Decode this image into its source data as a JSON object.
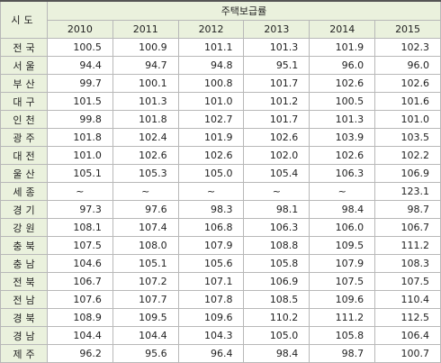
{
  "table": {
    "region_header": "시도",
    "group_header": "주택보급률",
    "years": [
      "2010",
      "2011",
      "2012",
      "2013",
      "2014",
      "2015"
    ],
    "rows": [
      {
        "region": "전국",
        "values": [
          "100.5",
          "100.9",
          "101.1",
          "101.3",
          "101.9",
          "102.3"
        ]
      },
      {
        "region": "서울",
        "values": [
          "94.4",
          "94.7",
          "94.8",
          "95.1",
          "96.0",
          "96.0"
        ]
      },
      {
        "region": "부산",
        "values": [
          "99.7",
          "100.1",
          "100.8",
          "101.7",
          "102.6",
          "102.6"
        ]
      },
      {
        "region": "대구",
        "values": [
          "101.5",
          "101.3",
          "101.0",
          "101.2",
          "100.5",
          "101.6"
        ]
      },
      {
        "region": "인천",
        "values": [
          "99.8",
          "101.8",
          "102.7",
          "101.7",
          "101.3",
          "101.0"
        ]
      },
      {
        "region": "광주",
        "values": [
          "101.8",
          "102.4",
          "101.9",
          "102.6",
          "103.9",
          "103.5"
        ]
      },
      {
        "region": "대전",
        "values": [
          "101.0",
          "102.6",
          "102.6",
          "102.0",
          "102.6",
          "102.2"
        ]
      },
      {
        "region": "울산",
        "values": [
          "105.1",
          "105.3",
          "105.0",
          "105.4",
          "106.3",
          "106.9"
        ]
      },
      {
        "region": "세종",
        "values": [
          "~",
          "~",
          "~",
          "~",
          "~",
          "123.1"
        ]
      },
      {
        "region": "경기",
        "values": [
          "97.3",
          "97.6",
          "98.3",
          "98.1",
          "98.4",
          "98.7"
        ]
      },
      {
        "region": "강원",
        "values": [
          "108.1",
          "107.4",
          "106.8",
          "106.3",
          "106.0",
          "106.7"
        ]
      },
      {
        "region": "충북",
        "values": [
          "107.5",
          "108.0",
          "107.9",
          "108.8",
          "109.5",
          "111.2"
        ]
      },
      {
        "region": "충남",
        "values": [
          "104.6",
          "105.1",
          "105.6",
          "105.8",
          "107.9",
          "108.3"
        ]
      },
      {
        "region": "전북",
        "values": [
          "106.7",
          "107.2",
          "107.1",
          "106.9",
          "107.5",
          "107.5"
        ]
      },
      {
        "region": "전남",
        "values": [
          "107.6",
          "107.7",
          "107.8",
          "108.5",
          "109.6",
          "110.4"
        ]
      },
      {
        "region": "경북",
        "values": [
          "108.9",
          "109.5",
          "109.6",
          "110.2",
          "111.2",
          "112.5"
        ]
      },
      {
        "region": "경남",
        "values": [
          "104.4",
          "104.4",
          "104.3",
          "105.0",
          "105.8",
          "106.4"
        ]
      },
      {
        "region": "제주",
        "values": [
          "96.2",
          "95.6",
          "96.4",
          "98.4",
          "98.7",
          "100.7"
        ]
      }
    ]
  }
}
